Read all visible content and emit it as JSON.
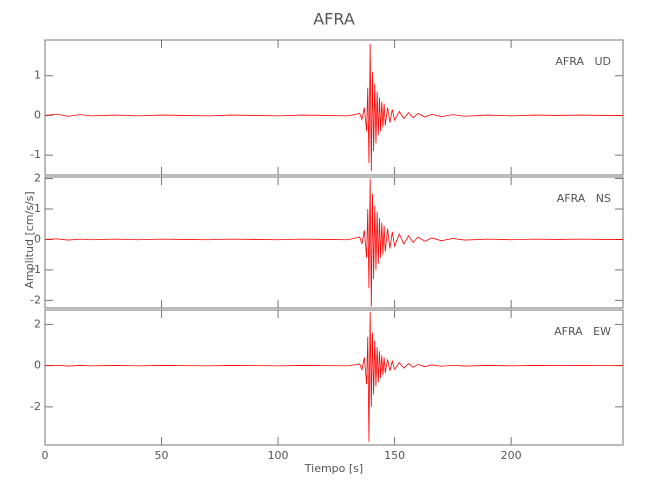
{
  "title": "AFRA",
  "xlabel": "Tiempo [s]",
  "ylabel": "Amplitud [cm/s/s]",
  "chart_data": [
    {
      "type": "line",
      "label": "AFRA   UD",
      "color": "#ff0000",
      "x": [
        0,
        5,
        10,
        15,
        20,
        30,
        40,
        50,
        60,
        70,
        80,
        90,
        100,
        110,
        120,
        130,
        135,
        136,
        137,
        138,
        138.5,
        139,
        139.5,
        140,
        140.5,
        141,
        141.5,
        142,
        142.5,
        143,
        143.5,
        144,
        144.5,
        145,
        145.5,
        146,
        147,
        148,
        149,
        150,
        152,
        154,
        156,
        158,
        160,
        163,
        166,
        170,
        175,
        180,
        190,
        200,
        210,
        220,
        230,
        240,
        248
      ],
      "values": [
        0,
        0.03,
        -0.02,
        0.02,
        -0.01,
        0.01,
        -0.01,
        0.01,
        0,
        -0.01,
        0.01,
        0,
        -0.01,
        0.01,
        0,
        -0.01,
        0.05,
        -0.1,
        0.2,
        -0.4,
        0.7,
        -1.2,
        1.8,
        -1.4,
        1.1,
        -0.9,
        0.8,
        -0.7,
        0.6,
        -0.5,
        0.45,
        -0.4,
        0.35,
        -0.3,
        0.3,
        -0.25,
        0.2,
        -0.18,
        0.15,
        -0.12,
        0.1,
        -0.08,
        0.07,
        -0.06,
        0.05,
        -0.04,
        0.03,
        -0.03,
        0.02,
        -0.02,
        0.01,
        -0.01,
        0.01,
        0,
        0.01,
        0,
        0
      ],
      "xlim": [
        0,
        248
      ],
      "xticks": [
        0,
        50,
        100,
        150,
        200
      ],
      "ylim": [
        -1.5,
        1.9
      ],
      "yticks": [
        -1,
        0,
        1
      ]
    },
    {
      "type": "line",
      "label": "AFRA   NS",
      "color": "#ff0000",
      "x": [
        0,
        5,
        10,
        15,
        20,
        30,
        40,
        50,
        60,
        70,
        80,
        90,
        100,
        110,
        120,
        130,
        135,
        136,
        137,
        138,
        138.5,
        139,
        139.5,
        140,
        140.5,
        141,
        141.5,
        142,
        142.5,
        143,
        143.5,
        144,
        144.5,
        145,
        145.5,
        146,
        147,
        148,
        149,
        150,
        152,
        154,
        156,
        158,
        160,
        163,
        166,
        170,
        175,
        180,
        190,
        200,
        210,
        220,
        230,
        240,
        248
      ],
      "values": [
        0,
        0.02,
        -0.02,
        0.01,
        -0.01,
        0.01,
        -0.01,
        0.01,
        0,
        -0.01,
        0.01,
        0,
        -0.01,
        0.01,
        0,
        -0.01,
        0.08,
        -0.15,
        0.3,
        -0.6,
        1.0,
        -1.6,
        2.0,
        -2.2,
        1.5,
        -1.3,
        1.1,
        -1.0,
        0.9,
        -0.8,
        0.7,
        -0.6,
        0.55,
        -0.5,
        0.45,
        -0.4,
        0.35,
        -0.3,
        0.25,
        -0.22,
        0.18,
        -0.15,
        0.12,
        -0.1,
        0.08,
        -0.06,
        0.05,
        -0.04,
        0.03,
        -0.02,
        0.01,
        -0.01,
        0.01,
        0,
        0.01,
        0,
        0
      ],
      "xlim": [
        0,
        248
      ],
      "xticks": [
        0,
        50,
        100,
        150,
        200
      ],
      "ylim": [
        -2.25,
        2.05
      ],
      "yticks": [
        -2,
        -1,
        0,
        1,
        2
      ]
    },
    {
      "type": "line",
      "label": "AFRA   EW",
      "color": "#ff0000",
      "x": [
        0,
        5,
        10,
        15,
        20,
        30,
        40,
        50,
        60,
        70,
        80,
        90,
        100,
        110,
        120,
        130,
        135,
        136,
        137,
        138,
        138.5,
        139,
        139.5,
        140,
        140.5,
        141,
        141.5,
        142,
        142.5,
        143,
        143.5,
        144,
        144.5,
        145,
        145.5,
        146,
        147,
        148,
        149,
        150,
        152,
        154,
        156,
        158,
        160,
        163,
        166,
        170,
        175,
        180,
        190,
        200,
        210,
        220,
        230,
        240,
        248
      ],
      "values": [
        0,
        0.02,
        -0.02,
        0.01,
        -0.01,
        0.01,
        -0.01,
        0.01,
        0,
        -0.01,
        0.01,
        0,
        -0.01,
        0.01,
        0,
        -0.01,
        0.08,
        -0.2,
        0.4,
        -0.9,
        1.4,
        -3.7,
        2.6,
        -2.0,
        1.6,
        -1.4,
        1.2,
        -1.0,
        0.9,
        -0.8,
        0.7,
        -0.6,
        0.5,
        -0.45,
        0.4,
        -0.35,
        0.3,
        -0.25,
        0.22,
        -0.18,
        0.15,
        -0.12,
        0.1,
        -0.08,
        0.06,
        -0.05,
        0.04,
        -0.03,
        0.02,
        -0.02,
        0.01,
        -0.01,
        0.01,
        0,
        0.01,
        0,
        0
      ],
      "xlim": [
        0,
        248
      ],
      "xticks": [
        0,
        50,
        100,
        150,
        200
      ],
      "ylim": [
        -3.85,
        2.7
      ],
      "yticks": [
        -2,
        0,
        2
      ]
    }
  ]
}
